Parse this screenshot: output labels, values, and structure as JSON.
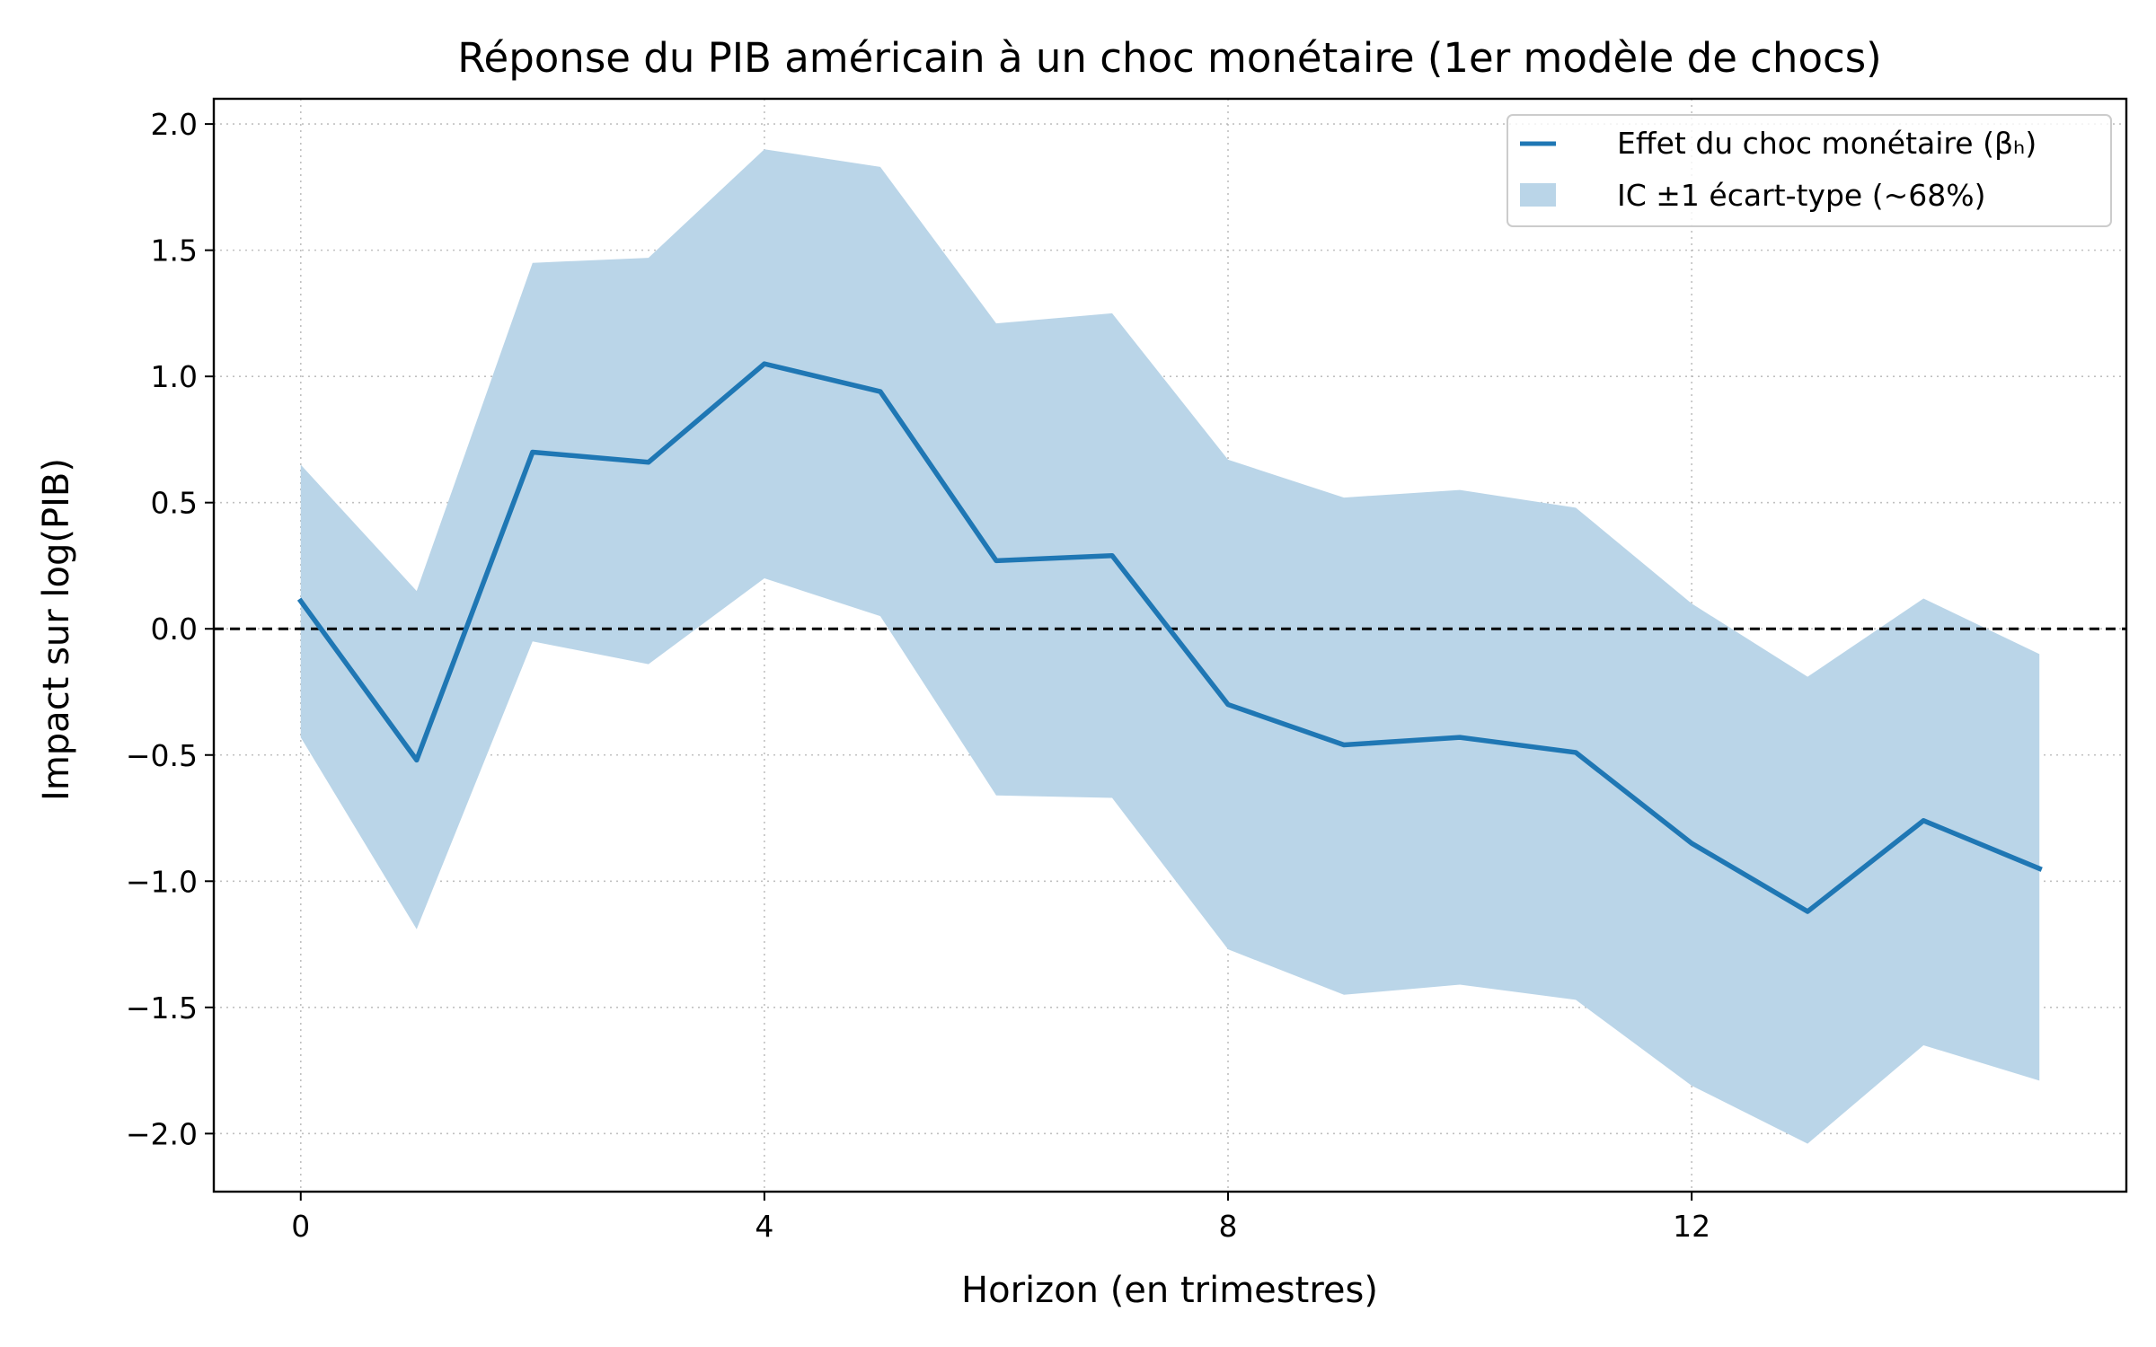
{
  "chart_data": {
    "type": "line",
    "title": "Réponse du PIB américain à un choc monétaire (1er modèle de chocs)",
    "xlabel": "Horizon (en trimestres)",
    "ylabel": "Impact sur log(PIB)",
    "xlim": [
      -0.75,
      15.75
    ],
    "ylim": [
      -2.23,
      2.1
    ],
    "xticks": [
      0,
      4,
      8,
      12
    ],
    "xtick_labels": [
      "0",
      "4",
      "8",
      "12"
    ],
    "yticks": [
      2.0,
      1.5,
      1.0,
      0.5,
      0.0,
      -0.5,
      -1.0,
      -1.5,
      -2.0
    ],
    "ytick_labels": [
      "2.0",
      "1.5",
      "1.0",
      "0.5",
      "0.0",
      "−0.5",
      "−1.0",
      "−1.5",
      "−2.0"
    ],
    "grid": true,
    "zero_line": true,
    "legend_position": "top-right",
    "x": [
      0,
      1,
      2,
      3,
      4,
      5,
      6,
      7,
      8,
      9,
      10,
      11,
      12,
      13,
      14,
      15
    ],
    "series": [
      {
        "name": "Effet du choc monétaire (βₕ)",
        "kind": "line",
        "color": "#1f77b4",
        "values": [
          0.11,
          -0.52,
          0.7,
          0.66,
          1.05,
          0.94,
          0.27,
          0.29,
          -0.3,
          -0.46,
          -0.43,
          -0.49,
          -0.85,
          -1.12,
          -0.76,
          -0.95
        ]
      },
      {
        "name": "IC ±1 écart-type (~68%)",
        "kind": "band",
        "color": "#bad5e8",
        "upper": [
          0.65,
          0.15,
          1.45,
          1.47,
          1.9,
          1.83,
          1.21,
          1.25,
          0.67,
          0.52,
          0.55,
          0.48,
          0.1,
          -0.19,
          0.12,
          -0.1
        ],
        "lower": [
          -0.43,
          -1.19,
          -0.05,
          -0.14,
          0.2,
          0.05,
          -0.66,
          -0.67,
          -1.27,
          -1.45,
          -1.41,
          -1.47,
          -1.81,
          -2.04,
          -1.65,
          -1.79
        ]
      }
    ]
  }
}
